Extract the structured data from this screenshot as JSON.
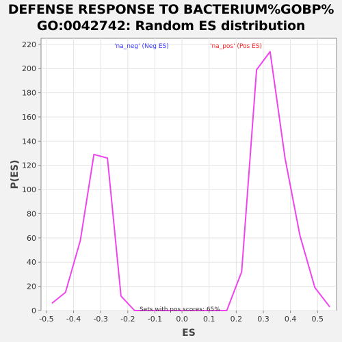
{
  "chart_data": {
    "type": "line",
    "title_line1": "DEFENSE RESPONSE TO BACTERIUM%GOBP%",
    "title_line2": "GO:0042742: Random ES distribution",
    "xlabel": "ES",
    "ylabel": "P(ES)",
    "xlim": [
      -0.52,
      0.57
    ],
    "ylim": [
      0,
      225
    ],
    "xticks": [
      -0.5,
      -0.4,
      -0.3,
      -0.2,
      -0.1,
      0.0,
      0.1,
      0.2,
      0.3,
      0.4,
      0.5
    ],
    "xtick_labels": [
      "-0.5",
      "-0.4",
      "-0.3",
      "-0.2",
      "-0.1",
      "0.0",
      "0.1",
      "0.2",
      "0.3",
      "0.4",
      "0.5"
    ],
    "yticks": [
      0,
      20,
      40,
      60,
      80,
      100,
      120,
      140,
      160,
      180,
      200,
      220
    ],
    "ytick_labels": [
      "0",
      "20",
      "40",
      "60",
      "80",
      "100",
      "120",
      "140",
      "160",
      "180",
      "200",
      "220"
    ],
    "grid": true,
    "legend": {
      "neg_label": "'na_neg' (Neg ES)",
      "neg_color": "#3333ff",
      "pos_label": "'na_pos' (Pos ES)",
      "pos_color": "#ff2222"
    },
    "annotation": "Sets with pos scores: 65%",
    "series": [
      {
        "name": "Random ES",
        "color": "#ee44ee",
        "x": [
          -0.48,
          -0.43,
          -0.375,
          -0.325,
          -0.275,
          -0.225,
          -0.175,
          -0.125,
          -0.075,
          -0.025,
          0.025,
          0.075,
          0.125,
          0.165,
          0.22,
          0.275,
          0.325,
          0.38,
          0.435,
          0.49,
          0.545
        ],
        "y": [
          6,
          15,
          58,
          129,
          126,
          12,
          0,
          0,
          0,
          0,
          0,
          0,
          0,
          0,
          32,
          199,
          214,
          126,
          62,
          19,
          3
        ]
      }
    ]
  }
}
